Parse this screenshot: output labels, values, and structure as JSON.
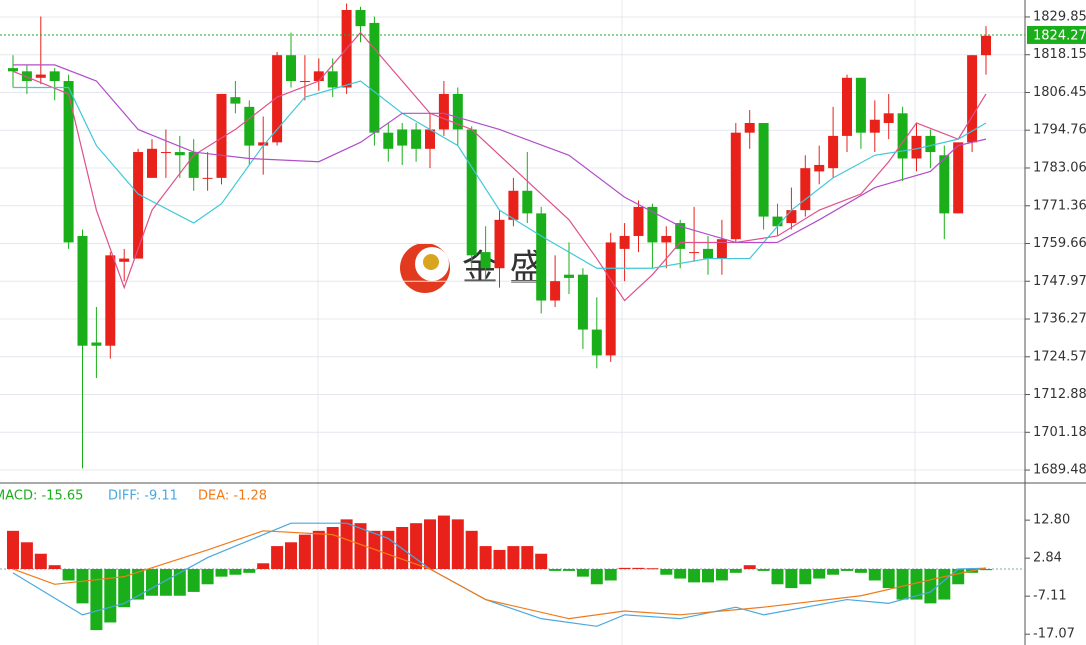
{
  "chart_data": {
    "type": "candlestick",
    "watermark": "金 盛",
    "up_color": "#e8211a",
    "down_color": "#1aaf1a",
    "open": [
      1814,
      1813,
      1811,
      1813,
      1810,
      1762,
      1729,
      1728,
      1754,
      1755,
      1780,
      1788,
      1788,
      1788,
      1780,
      1780,
      1805,
      1802,
      1790,
      1791,
      1818,
      1810,
      1810,
      1813,
      1808,
      1832,
      1828,
      1794,
      1795,
      1795,
      1789,
      1795,
      1806,
      1795,
      1757,
      1752,
      1767,
      1776,
      1769,
      1742,
      1750,
      1750,
      1733,
      1725,
      1758,
      1762,
      1771,
      1760,
      1766,
      1757,
      1758,
      1755,
      1761,
      1794,
      1797,
      1768,
      1766,
      1770,
      1782,
      1783,
      1793,
      1811,
      1794,
      1797,
      1800,
      1786,
      1793,
      1787,
      1769,
      1791,
      1818
    ],
    "high": [
      1818,
      1815,
      1830,
      1814,
      1812,
      1764,
      1740,
      1757,
      1758,
      1789,
      1792,
      1795,
      1793,
      1792,
      1788,
      1806,
      1810,
      1804,
      1799,
      1819,
      1825,
      1818,
      1817,
      1817,
      1834,
      1833,
      1830,
      1797,
      1797,
      1797,
      1800,
      1810,
      1808,
      1796,
      1765,
      1770,
      1780,
      1788,
      1771,
      1756,
      1760,
      1752,
      1743,
      1763,
      1766,
      1773,
      1772,
      1765,
      1767,
      1771,
      1762,
      1767,
      1797,
      1801,
      1797,
      1772,
      1777,
      1787,
      1790,
      1802,
      1812,
      1811,
      1804,
      1806,
      1802,
      1797,
      1795,
      1790,
      1791,
      1818,
      1827
    ],
    "low": [
      1808,
      1806,
      1809,
      1804,
      1758,
      1690,
      1718,
      1724,
      1748,
      1755,
      1780,
      1780,
      1780,
      1776,
      1776,
      1778,
      1800,
      1784,
      1781,
      1790,
      1808,
      1804,
      1807,
      1805,
      1806,
      1822,
      1790,
      1785,
      1784,
      1785,
      1783,
      1793,
      1790,
      1752,
      1748,
      1746,
      1765,
      1766,
      1738,
      1740,
      1744,
      1727,
      1721,
      1723,
      1748,
      1757,
      1752,
      1752,
      1752,
      1754,
      1750,
      1750,
      1760,
      1789,
      1764,
      1762,
      1764,
      1768,
      1778,
      1780,
      1788,
      1789,
      1788,
      1792,
      1779,
      1782,
      1783,
      1761,
      1769,
      1788,
      1812
    ],
    "close": [
      1813,
      1810,
      1812,
      1810,
      1760,
      1728,
      1728,
      1756,
      1755,
      1788,
      1789,
      1788,
      1787,
      1780,
      1780,
      1806,
      1803,
      1790,
      1791,
      1818,
      1810,
      1810,
      1813,
      1808,
      1832,
      1827,
      1794,
      1789,
      1790,
      1789,
      1795,
      1806,
      1795,
      1756,
      1752,
      1767,
      1776,
      1769,
      1742,
      1748,
      1749,
      1733,
      1725,
      1760,
      1762,
      1771,
      1760,
      1762,
      1758,
      1757,
      1755,
      1761,
      1794,
      1797,
      1768,
      1765,
      1770,
      1783,
      1784,
      1793,
      1811,
      1794,
      1798,
      1800,
      1786,
      1793,
      1788,
      1769,
      1791,
      1818,
      1824
    ],
    "ma_lines": [
      {
        "color": "#e0508a",
        "x": [
          0,
          4,
          6,
          8,
          10,
          13,
          16,
          19,
          22,
          25,
          27,
          30,
          33,
          36,
          40,
          42,
          44,
          46,
          48,
          52,
          55,
          58,
          61,
          63,
          65,
          68,
          70
        ],
        "values": [
          1813,
          1806,
          1770,
          1746,
          1770,
          1787,
          1795,
          1805,
          1810,
          1825,
          1815,
          1800,
          1795,
          1783,
          1767,
          1755,
          1742,
          1750,
          1760,
          1760,
          1762,
          1770,
          1775,
          1785,
          1797,
          1792,
          1806
        ]
      },
      {
        "color": "#40c8d8",
        "x": [
          0,
          4,
          6,
          9,
          13,
          15,
          18,
          21,
          25,
          28,
          32,
          35,
          38,
          42,
          46,
          50,
          53,
          56,
          59,
          62,
          65,
          68,
          70
        ],
        "values": [
          1808,
          1808,
          1790,
          1775,
          1766,
          1772,
          1790,
          1805,
          1810,
          1800,
          1790,
          1770,
          1762,
          1752,
          1752,
          1755,
          1755,
          1770,
          1780,
          1787,
          1789,
          1792,
          1797
        ]
      },
      {
        "color": "#b050c8",
        "x": [
          0,
          3,
          6,
          9,
          13,
          17,
          22,
          25,
          28,
          31,
          35,
          40,
          44,
          48,
          52,
          55,
          58,
          62,
          66,
          68,
          70
        ],
        "values": [
          1815,
          1815,
          1810,
          1795,
          1788,
          1786,
          1785,
          1791,
          1800,
          1800,
          1795,
          1787,
          1774,
          1765,
          1760,
          1760,
          1767,
          1777,
          1782,
          1790,
          1792
        ]
      }
    ],
    "ylim": [
      1686.4,
      1835.1
    ],
    "yticks": [
      1829.85,
      1818.15,
      1806.45,
      1794.76,
      1783.06,
      1771.36,
      1759.66,
      1747.97,
      1736.27,
      1724.57,
      1712.88,
      1701.18,
      1689.48
    ],
    "last_price": 1824.27,
    "macd": {
      "labels": [
        "MACD: -15.65",
        "DIFF: -9.11",
        "DEA: -1.28"
      ],
      "hist": [
        10,
        7,
        4,
        1,
        -3,
        -9,
        -16,
        -14,
        -10,
        -8,
        -7,
        -7,
        -7,
        -6,
        -4,
        -2,
        -1.5,
        -1,
        1.5,
        6,
        7,
        9,
        10,
        11,
        13,
        12,
        10,
        10,
        11,
        12,
        13,
        14,
        13,
        10,
        6,
        5,
        6,
        6,
        4,
        -0.5,
        -0.5,
        -2,
        -4,
        -3,
        0.3,
        0.3,
        0.2,
        -1.5,
        -2.5,
        -3.5,
        -3.5,
        -3,
        -1,
        1,
        -0.5,
        -4,
        -5,
        -4,
        -2.5,
        -1.5,
        -0.5,
        -1,
        -3,
        -5,
        -8,
        -8,
        -9,
        -8,
        -4,
        -1,
        -0.3
      ],
      "series": [
        {
          "name": "DIFF",
          "color": "#4aa8e0",
          "x": [
            0,
            5,
            8,
            14,
            20,
            24,
            27,
            30,
            34,
            38,
            42,
            44,
            48,
            52,
            54,
            60,
            63,
            66,
            68,
            70
          ],
          "values": [
            -1,
            -12,
            -9,
            3,
            12,
            12,
            8,
            0,
            -8,
            -13,
            -15,
            -12,
            -13,
            -10,
            -12,
            -8,
            -9,
            -6,
            0,
            0.2
          ]
        },
        {
          "name": "DEA",
          "color": "#f07a1a",
          "x": [
            0,
            3,
            8,
            14,
            18,
            23,
            30,
            34,
            40,
            44,
            48,
            54,
            61,
            67,
            70
          ],
          "values": [
            0,
            -4,
            -2,
            5,
            10,
            9,
            0,
            -8,
            -13,
            -11,
            -12,
            -10,
            -7,
            -2,
            0.3
          ]
        }
      ],
      "ylim": [
        -19.9,
        22
      ],
      "yticks": [
        {
          "value": 12.8,
          "label": "12.80"
        },
        2.84,
        -7.11,
        -17.07
      ]
    }
  }
}
